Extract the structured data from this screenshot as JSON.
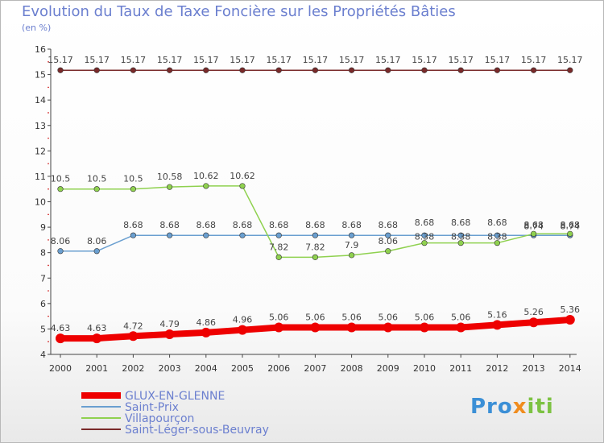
{
  "chart_data": {
    "type": "line",
    "title": "Evolution du Taux de Taxe Foncière sur les Propriétés Bâties",
    "ylabel": "(en %)",
    "xlabel": "",
    "ylim": [
      4,
      16
    ],
    "yticks": [
      "4",
      "5",
      "6",
      "7",
      "8",
      "9",
      "10",
      "11",
      "12",
      "13",
      "14",
      "15",
      "16"
    ],
    "categories": [
      "2000",
      "2001",
      "2002",
      "2003",
      "2004",
      "2005",
      "2006",
      "2007",
      "2008",
      "2009",
      "2010",
      "2011",
      "2012",
      "2013",
      "2014"
    ],
    "series": [
      {
        "name": "GLUX-EN-GLENNE",
        "color": "#ee0000",
        "values": [
          4.63,
          4.63,
          4.72,
          4.79,
          4.86,
          4.96,
          5.06,
          5.06,
          5.06,
          5.06,
          5.06,
          5.06,
          5.16,
          5.26,
          5.36
        ],
        "labels": [
          "4.63",
          "4.63",
          "4.72",
          "4.79",
          "4.86",
          "4.96",
          "5.06",
          "5.06",
          "5.06",
          "5.06",
          "5.06",
          "5.06",
          "5.16",
          "5.26",
          "5.36"
        ]
      },
      {
        "name": "Saint-Prix",
        "color": "#6a9fd0",
        "values": [
          8.06,
          8.06,
          8.68,
          8.68,
          8.68,
          8.68,
          8.68,
          8.68,
          8.68,
          8.68,
          8.68,
          8.68,
          8.68,
          8.68,
          8.68
        ],
        "labels": [
          "8.06",
          "8.06",
          "8.68",
          "8.68",
          "8.68",
          "8.68",
          "8.68",
          "8.68",
          "8.68",
          "8.68",
          "8.68",
          "8.68",
          "8.68",
          "8.68",
          "8.68"
        ]
      },
      {
        "name": "Villapourçon",
        "color": "#8fd14f",
        "values": [
          10.5,
          10.5,
          10.5,
          10.58,
          10.62,
          10.62,
          7.82,
          7.82,
          7.9,
          8.06,
          8.38,
          8.38,
          8.38,
          8.74,
          8.74
        ],
        "labels": [
          "10.5",
          "10.5",
          "10.5",
          "10.58",
          "10.62",
          "10.62",
          "7.82",
          "7.82",
          "7.9",
          "8.06",
          "8.38",
          "8.38",
          "8.38",
          "8.74",
          "8.74"
        ]
      },
      {
        "name": "Saint-Léger-sous-Beuvray",
        "color": "#7a2a2a",
        "values": [
          15.17,
          15.17,
          15.17,
          15.17,
          15.17,
          15.17,
          15.17,
          15.17,
          15.17,
          15.17,
          15.17,
          15.17,
          15.17,
          15.17,
          15.17
        ],
        "labels": [
          "15.17",
          "15.17",
          "15.17",
          "15.17",
          "15.17",
          "15.17",
          "15.17",
          "15.17",
          "15.17",
          "15.17",
          "15.17",
          "15.17",
          "15.17",
          "15.17",
          "15.17"
        ]
      }
    ],
    "legend": "bottom-left",
    "grid": false
  },
  "logo": {
    "part1": "Pro",
    "part2": "x",
    "part3": "iti"
  }
}
